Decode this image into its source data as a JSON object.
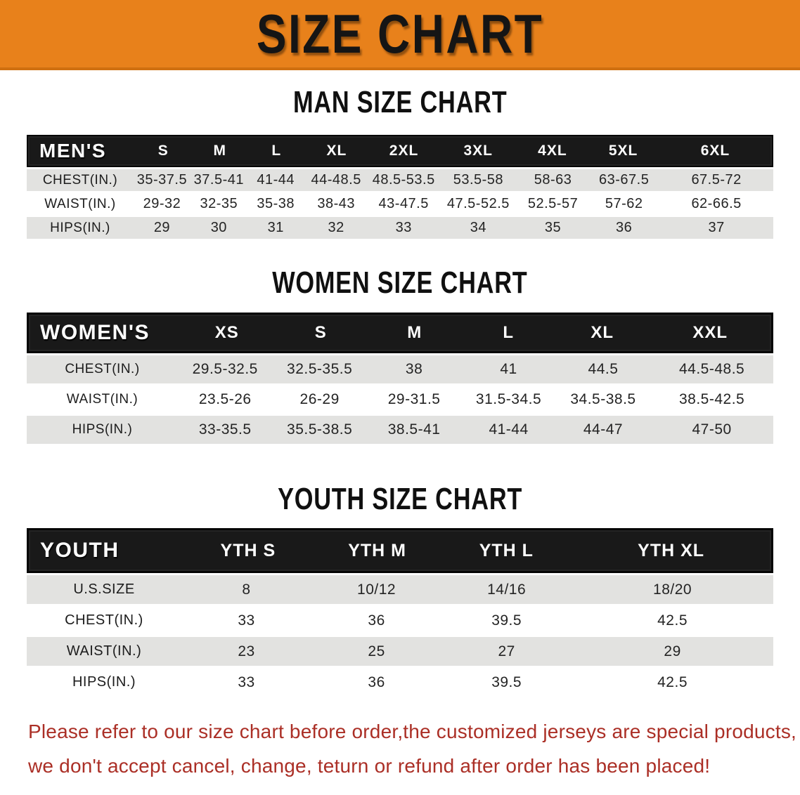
{
  "banner": {
    "title": "SIZE CHART",
    "bg_color": "#e8811b",
    "text_color": "#151515"
  },
  "sections": [
    {
      "heading": "MAN SIZE CHART",
      "table": {
        "header": [
          "MEN'S",
          "S",
          "M",
          "L",
          "XL",
          "2XL",
          "3XL",
          "4XL",
          "5XL",
          "6XL"
        ],
        "rows": [
          {
            "label": "CHEST(IN.)",
            "values": [
              "35-37.5",
              "37.5-41",
              "41-44",
              "44-48.5",
              "48.5-53.5",
              "53.5-58",
              "58-63",
              "63-67.5",
              "67.5-72"
            ]
          },
          {
            "label": "WAIST(IN.)",
            "values": [
              "29-32",
              "32-35",
              "35-38",
              "38-43",
              "43-47.5",
              "47.5-52.5",
              "52.5-57",
              "57-62",
              "62-66.5"
            ]
          },
          {
            "label": "HIPS(IN.)",
            "values": [
              "29",
              "30",
              "31",
              "32",
              "33",
              "34",
              "35",
              "36",
              "37"
            ]
          }
        ]
      }
    },
    {
      "heading": "WOMEN SIZE CHART",
      "table": {
        "header": [
          "WOMEN'S",
          "XS",
          "S",
          "M",
          "L",
          "XL",
          "XXL"
        ],
        "rows": [
          {
            "label": "CHEST(IN.)",
            "values": [
              "29.5-32.5",
              "32.5-35.5",
              "38",
              "41",
              "44.5",
              "44.5-48.5"
            ]
          },
          {
            "label": "WAIST(IN.)",
            "values": [
              "23.5-26",
              "26-29",
              "29-31.5",
              "31.5-34.5",
              "34.5-38.5",
              "38.5-42.5"
            ]
          },
          {
            "label": "HIPS(IN.)",
            "values": [
              "33-35.5",
              "35.5-38.5",
              "38.5-41",
              "41-44",
              "44-47",
              "47-50"
            ]
          }
        ]
      }
    },
    {
      "heading": "YOUTH SIZE CHART",
      "table": {
        "header": [
          "YOUTH",
          "YTH S",
          "YTH M",
          "YTH L",
          "YTH XL"
        ],
        "rows": [
          {
            "label": "U.S.SIZE",
            "values": [
              "8",
              "10/12",
              "14/16",
              "18/20"
            ]
          },
          {
            "label": "CHEST(IN.)",
            "values": [
              "33",
              "36",
              "39.5",
              "42.5"
            ]
          },
          {
            "label": "WAIST(IN.)",
            "values": [
              "23",
              "25",
              "27",
              "29"
            ]
          },
          {
            "label": "HIPS(IN.)",
            "values": [
              "33",
              "36",
              "39.5",
              "42.5"
            ]
          }
        ]
      }
    }
  ],
  "footer": {
    "color": "#ab2f26",
    "line1": "Please refer to our size chart before order,the customized jerseys are special products,",
    "line2": "we don't accept cancel, change, teturn or refund after order has been placed!"
  }
}
